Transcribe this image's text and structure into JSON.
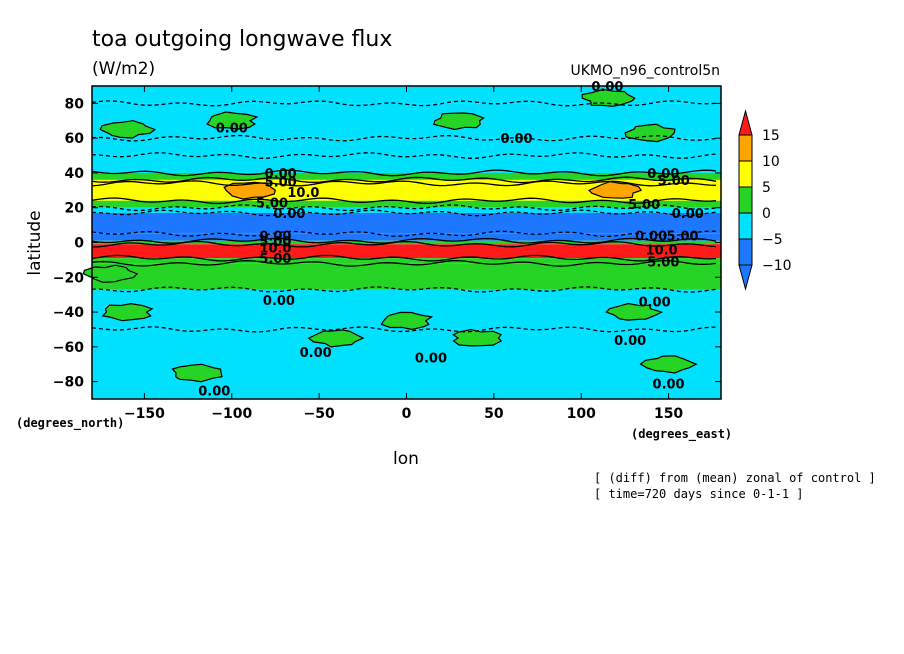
{
  "chart_data": {
    "type": "heatmap",
    "title": "toa outgoing longwave flux",
    "units": "(W/m2)",
    "run_name": "UKMO_n96_control5n",
    "xlabel": "lon",
    "ylabel": "latitude",
    "x_unit_label": "(degrees_east)",
    "y_unit_label": "(degrees_north)",
    "xlim": [
      -180,
      180
    ],
    "ylim": [
      -90,
      90
    ],
    "x_ticks": [
      {
        "value": -150,
        "label": "−150"
      },
      {
        "value": -100,
        "label": "−100"
      },
      {
        "value": -50,
        "label": "−50"
      },
      {
        "value": 0,
        "label": "0"
      },
      {
        "value": 50,
        "label": "50"
      },
      {
        "value": 100,
        "label": "100"
      },
      {
        "value": 150,
        "label": "150"
      }
    ],
    "y_ticks": [
      {
        "value": 80,
        "label": "80"
      },
      {
        "value": 60,
        "label": "60"
      },
      {
        "value": 40,
        "label": "40"
      },
      {
        "value": 20,
        "label": "20"
      },
      {
        "value": 0,
        "label": "0"
      },
      {
        "value": -20,
        "label": "−20"
      },
      {
        "value": -40,
        "label": "−40"
      },
      {
        "value": -60,
        "label": "−60"
      },
      {
        "value": -80,
        "label": "−80"
      }
    ],
    "notes": [
      "[ (diff) from (mean) zonal of control ]",
      "[ time=720 days since 0-1-1 ]"
    ],
    "colorbar": {
      "levels": [
        {
          "value": -10,
          "label": "−10"
        },
        {
          "value": -5,
          "label": "−5"
        },
        {
          "value": 0,
          "label": "0"
        },
        {
          "value": 5,
          "label": "5"
        },
        {
          "value": 10,
          "label": "10"
        },
        {
          "value": 15,
          "label": "15"
        }
      ],
      "bins": [
        {
          "range": "<-10",
          "color": "#1e78ff"
        },
        {
          "range": "-10 to -5",
          "color": "#1e78ff"
        },
        {
          "range": "-5 to 0",
          "color": "#00e1ff"
        },
        {
          "range": "0 to 5",
          "color": "#25d425"
        },
        {
          "range": "5 to 10",
          "color": "#ffff00"
        },
        {
          "range": "10 to 15",
          "color": "#ffa500"
        },
        {
          "range": ">15",
          "color": "#ff1a1a"
        }
      ]
    },
    "zonal_bands": [
      {
        "lat": [
          80,
          90
        ],
        "value": -2
      },
      {
        "lat": [
          60,
          80
        ],
        "value": -2
      },
      {
        "lat": [
          50,
          60
        ],
        "value": -2
      },
      {
        "lat": [
          40,
          50
        ],
        "value": -3
      },
      {
        "lat": [
          36,
          40
        ],
        "value": 2
      },
      {
        "lat": [
          34,
          36
        ],
        "value": 7
      },
      {
        "lat": [
          24,
          34
        ],
        "value": 8
      },
      {
        "lat": [
          20,
          24
        ],
        "value": 3
      },
      {
        "lat": [
          17,
          20
        ],
        "value": -3
      },
      {
        "lat": [
          5,
          17
        ],
        "value": -12
      },
      {
        "lat": [
          1,
          5
        ],
        "value": -12
      },
      {
        "lat": [
          -1,
          1
        ],
        "value": 3
      },
      {
        "lat": [
          -9,
          -1
        ],
        "value": 18
      },
      {
        "lat": [
          -12,
          -9
        ],
        "value": 2
      },
      {
        "lat": [
          -27,
          -12
        ],
        "value": 2
      },
      {
        "lat": [
          -50,
          -27
        ],
        "value": -2
      },
      {
        "lat": [
          -90,
          -50
        ],
        "value": -2
      }
    ],
    "patches": [
      {
        "lon": -100,
        "lat": 70,
        "value": 2
      },
      {
        "lon": -160,
        "lat": 65,
        "value": 2
      },
      {
        "lon": 30,
        "lat": 70,
        "value": 2
      },
      {
        "lon": 115,
        "lat": 83,
        "value": 2
      },
      {
        "lon": 140,
        "lat": 63,
        "value": 2
      },
      {
        "lon": -90,
        "lat": 30,
        "value": 12
      },
      {
        "lon": 120,
        "lat": 30,
        "value": 12
      },
      {
        "lon": -120,
        "lat": -75,
        "value": 2
      },
      {
        "lon": -40,
        "lat": -55,
        "value": 2
      },
      {
        "lon": 40,
        "lat": -55,
        "value": 2
      },
      {
        "lon": 150,
        "lat": -70,
        "value": 2
      },
      {
        "lon": -160,
        "lat": -40,
        "value": 2
      },
      {
        "lon": 130,
        "lat": -40,
        "value": 2
      },
      {
        "lon": 0,
        "lat": -45,
        "value": 2
      },
      {
        "lon": -170,
        "lat": -18,
        "value": 2
      }
    ],
    "contour_labels": [
      {
        "lon": 115,
        "lat": 90,
        "text": "0.00"
      },
      {
        "lon": -100,
        "lat": 66,
        "text": "0.00"
      },
      {
        "lon": 63,
        "lat": 60,
        "text": "0.00"
      },
      {
        "lon": -72,
        "lat": 40,
        "text": "0.00"
      },
      {
        "lon": 147,
        "lat": 40,
        "text": "0.00"
      },
      {
        "lon": -72,
        "lat": 35,
        "text": "5.00"
      },
      {
        "lon": 153,
        "lat": 36,
        "text": "5.00"
      },
      {
        "lon": -59,
        "lat": 29,
        "text": "10.0"
      },
      {
        "lon": -77,
        "lat": 23,
        "text": "5.00"
      },
      {
        "lon": 136,
        "lat": 22,
        "text": "5.00"
      },
      {
        "lon": -67,
        "lat": 17,
        "text": "0.00"
      },
      {
        "lon": 161,
        "lat": 17,
        "text": "0.00"
      },
      {
        "lon": -75,
        "lat": 4,
        "text": "0.00"
      },
      {
        "lon": 140,
        "lat": 4,
        "text": "0.00"
      },
      {
        "lon": 158,
        "lat": 4,
        "text": "5.00"
      },
      {
        "lon": -75,
        "lat": 1,
        "text": "5.00"
      },
      {
        "lon": -75,
        "lat": -3,
        "text": "10.0"
      },
      {
        "lon": 146,
        "lat": -4,
        "text": "10.0"
      },
      {
        "lon": -75,
        "lat": -9,
        "text": "5.00"
      },
      {
        "lon": 147,
        "lat": -11,
        "text": "5.00"
      },
      {
        "lon": -73,
        "lat": -33,
        "text": "0.00"
      },
      {
        "lon": 142,
        "lat": -34,
        "text": "0.00"
      },
      {
        "lon": 128,
        "lat": -56,
        "text": "0.00"
      },
      {
        "lon": -52,
        "lat": -63,
        "text": "0.00"
      },
      {
        "lon": 14,
        "lat": -66,
        "text": "0.00"
      },
      {
        "lon": -110,
        "lat": -85,
        "text": "0.00"
      },
      {
        "lon": 150,
        "lat": -81,
        "text": "0.00"
      }
    ]
  }
}
